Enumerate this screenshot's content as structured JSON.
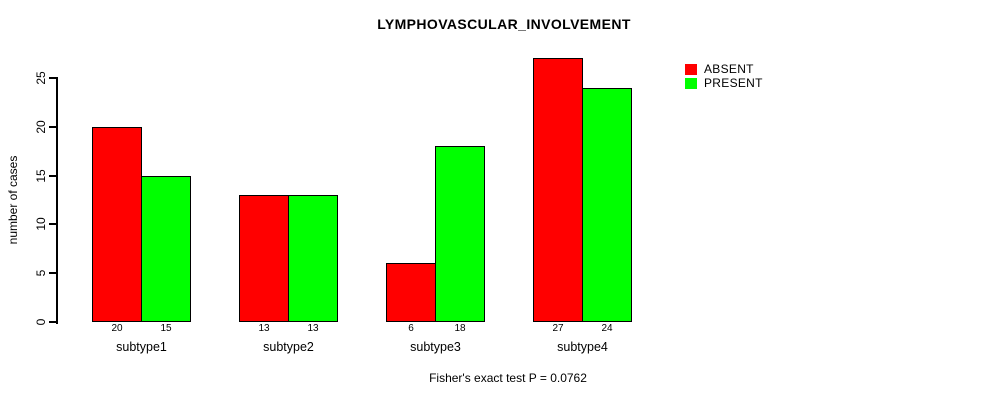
{
  "title": "LYMPHOVASCULAR_INVOLVEMENT",
  "caption": "Fisher's exact test P = 0.0762",
  "chart_data": {
    "type": "bar",
    "title": "LYMPHOVASCULAR_INVOLVEMENT",
    "categories": [
      "subtype1",
      "subtype2",
      "subtype3",
      "subtype4"
    ],
    "series": [
      {
        "name": "ABSENT",
        "color": "#ff0000",
        "values": [
          20,
          13,
          6,
          27
        ]
      },
      {
        "name": "PRESENT",
        "color": "#00ff00",
        "values": [
          15,
          13,
          18,
          24
        ]
      }
    ],
    "xlabel": "",
    "ylabel": "number of cases",
    "yticks": [
      0,
      5,
      10,
      15,
      20,
      25
    ],
    "ylim": [
      0,
      27
    ],
    "bar_value_labels": true,
    "bar_border_color": "#000000",
    "legend_position": "top-right",
    "legend_entries": [
      "ABSENT",
      "PRESENT"
    ],
    "grid": false,
    "background": "#ffffff",
    "annotation": "Fisher's exact test P = 0.0762"
  }
}
